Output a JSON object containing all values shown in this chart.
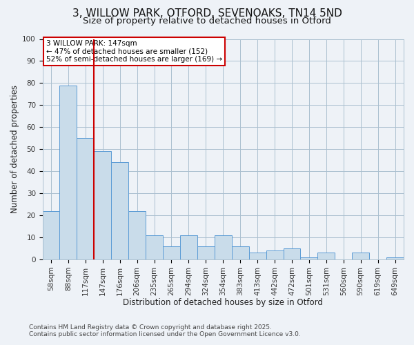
{
  "title": "3, WILLOW PARK, OTFORD, SEVENOAKS, TN14 5ND",
  "subtitle": "Size of property relative to detached houses in Otford",
  "xlabel": "Distribution of detached houses by size in Otford",
  "ylabel": "Number of detached properties",
  "bin_labels": [
    "58sqm",
    "88sqm",
    "117sqm",
    "147sqm",
    "176sqm",
    "206sqm",
    "235sqm",
    "265sqm",
    "294sqm",
    "324sqm",
    "354sqm",
    "383sqm",
    "413sqm",
    "442sqm",
    "472sqm",
    "501sqm",
    "531sqm",
    "560sqm",
    "590sqm",
    "619sqm",
    "649sqm"
  ],
  "bar_values": [
    22,
    79,
    55,
    49,
    44,
    22,
    11,
    6,
    11,
    6,
    11,
    6,
    3,
    4,
    5,
    1,
    3,
    0,
    3,
    0,
    1
  ],
  "bar_color": "#c9dcea",
  "bar_edge_color": "#5b9bd5",
  "vline_x_idx": 3,
  "vline_color": "#cc0000",
  "ylim": [
    0,
    100
  ],
  "yticks": [
    0,
    10,
    20,
    30,
    40,
    50,
    60,
    70,
    80,
    90,
    100
  ],
  "annotation_title": "3 WILLOW PARK: 147sqm",
  "annotation_line1": "← 47% of detached houses are smaller (152)",
  "annotation_line2": "52% of semi-detached houses are larger (169) →",
  "annotation_box_color": "#cc0000",
  "footer1": "Contains HM Land Registry data © Crown copyright and database right 2025.",
  "footer2": "Contains public sector information licensed under the Open Government Licence v3.0.",
  "background_color": "#eef2f7",
  "grid_color": "#aabfcf",
  "title_fontsize": 11,
  "subtitle_fontsize": 9.5,
  "axis_label_fontsize": 8.5,
  "tick_fontsize": 7.5,
  "annotation_fontsize": 7.5,
  "footer_fontsize": 6.5
}
